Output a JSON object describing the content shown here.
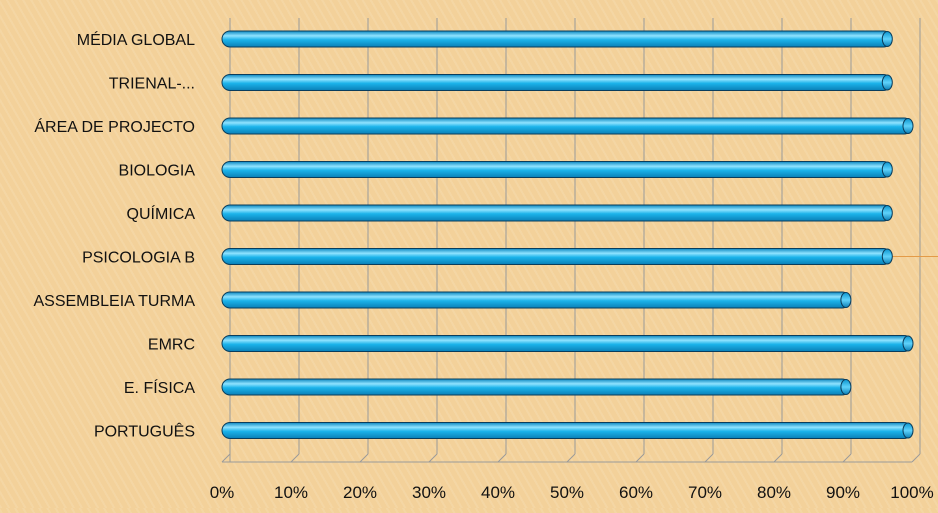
{
  "chart_data": {
    "type": "bar",
    "orientation": "horizontal",
    "categories": [
      "MÉDIA GLOBAL",
      "TRIENAL-...",
      "ÁREA DE PROJECTO",
      "BIOLOGIA",
      "QUÍMICA",
      "PSICOLOGIA B",
      "ASSEMBLEIA TURMA",
      "EMRC",
      "E. FÍSICA",
      "PORTUGUÊS"
    ],
    "values": [
      97,
      97,
      100,
      97,
      97,
      97,
      91,
      100,
      91,
      100
    ],
    "xlim": [
      0,
      100
    ],
    "x_ticks": [
      "0%",
      "10%",
      "20%",
      "30%",
      "40%",
      "50%",
      "60%",
      "70%",
      "80%",
      "90%",
      "100%"
    ],
    "grid": true,
    "legend": "none",
    "title": "",
    "xlabel": "",
    "ylabel": "",
    "colors": {
      "bar": "#1bb3ea",
      "bar_dark": "#0a86bf",
      "bar_highlight": "#8fe3ff",
      "bar_outline": "#0a3d5c",
      "grid": "#9a9a9a",
      "text": "#111111",
      "accent_line": "#e39b48"
    }
  }
}
